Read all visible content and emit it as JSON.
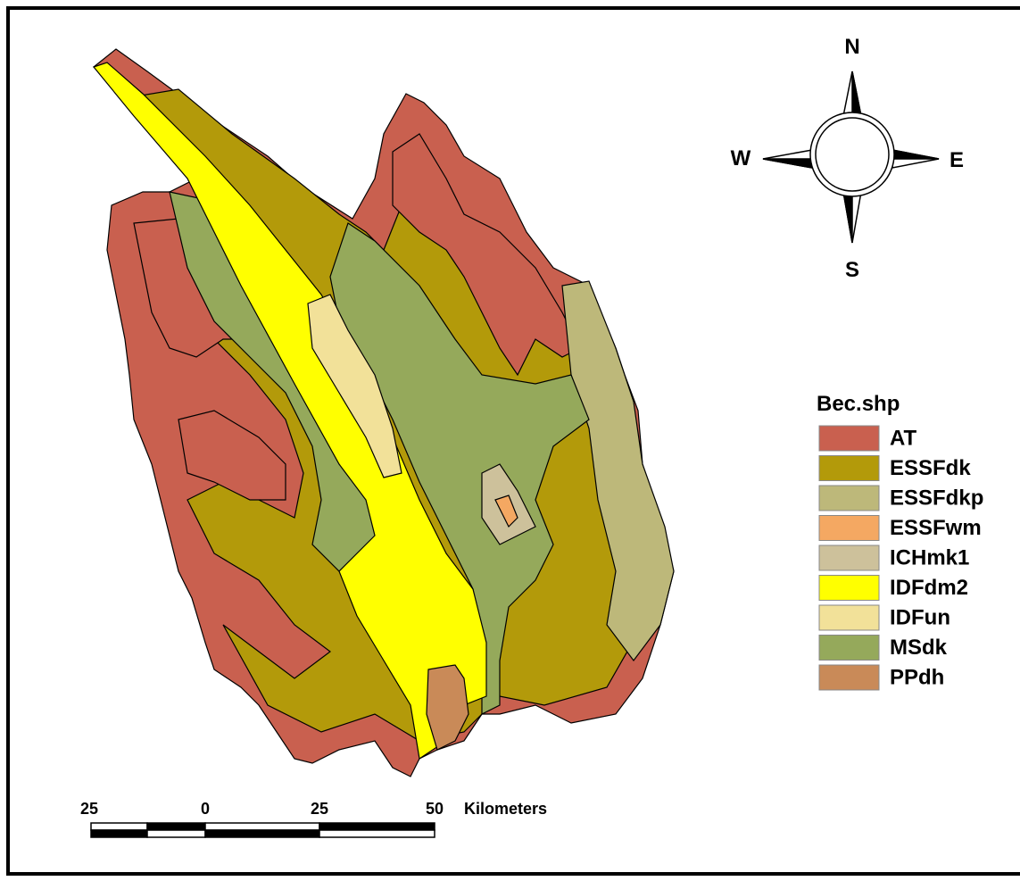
{
  "compass": {
    "north": "N",
    "south": "S",
    "west": "W",
    "east": "E"
  },
  "legend": {
    "title": "Bec.shp",
    "items": [
      {
        "label": "AT",
        "color": "#c9604f"
      },
      {
        "label": "ESSFdk",
        "color": "#b39a0a"
      },
      {
        "label": "ESSFdkp",
        "color": "#bdb87a"
      },
      {
        "label": "ESSFwm",
        "color": "#f4a862"
      },
      {
        "label": "ICHmk1",
        "color": "#cdc19b"
      },
      {
        "label": "IDFdm2",
        "color": "#ffff00"
      },
      {
        "label": "IDFun",
        "color": "#f2e199"
      },
      {
        "label": "MSdk",
        "color": "#95a95b"
      },
      {
        "label": "PPdh",
        "color": "#c98a58"
      }
    ]
  },
  "scale_bar": {
    "labels": [
      "25",
      "0",
      "25",
      "50"
    ],
    "unit": "Kilometers"
  }
}
